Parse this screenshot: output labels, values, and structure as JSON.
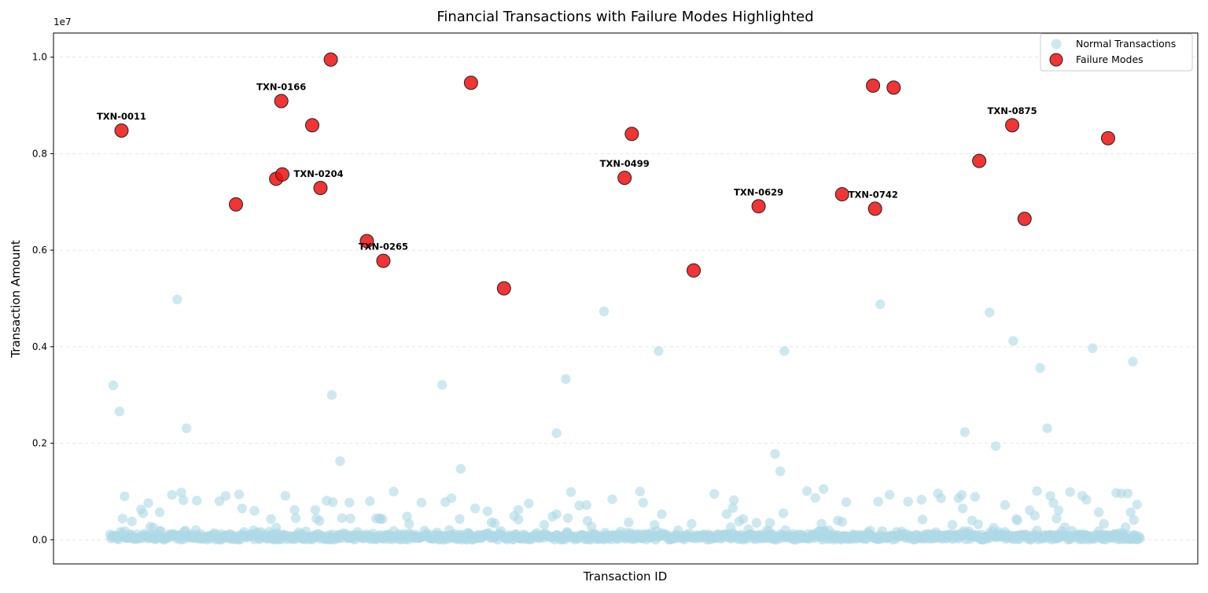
{
  "chart_data": {
    "type": "scatter",
    "title": "Financial Transactions with Failure Modes Highlighted",
    "xlabel": "Transaction ID",
    "ylabel": "Transaction Amount",
    "y_scale_label": "1e7",
    "ylim": [
      -0.05,
      1.05
    ],
    "xlim": [
      -55,
      1055
    ],
    "y_ticks": [
      "0.0",
      "0.2",
      "0.4",
      "0.6",
      "0.8",
      "1.0"
    ],
    "grid": "horizontal-dashed",
    "legend_position": "top-right",
    "legend": [
      "Normal Transactions",
      "Failure Modes"
    ],
    "colors": {
      "normal": "#add8e6",
      "failure": "#ee1111",
      "failure_edge": "#222222",
      "grid": "#dddddd"
    },
    "failures": [
      {
        "x": 11,
        "y": 0.848,
        "label": "TXN-0011"
      },
      {
        "x": 122,
        "y": 0.695,
        "label": ""
      },
      {
        "x": 161,
        "y": 0.748,
        "label": ""
      },
      {
        "x": 166,
        "y": 0.909,
        "label": "TXN-0166"
      },
      {
        "x": 167,
        "y": 0.757,
        "label": ""
      },
      {
        "x": 196,
        "y": 0.859,
        "label": ""
      },
      {
        "x": 204,
        "y": 0.729,
        "label": "TXN-0204"
      },
      {
        "x": 214,
        "y": 0.995,
        "label": ""
      },
      {
        "x": 249,
        "y": 0.619,
        "label": ""
      },
      {
        "x": 265,
        "y": 0.578,
        "label": "TXN-0265"
      },
      {
        "x": 350,
        "y": 0.947,
        "label": ""
      },
      {
        "x": 382,
        "y": 0.521,
        "label": ""
      },
      {
        "x": 499,
        "y": 0.75,
        "label": "TXN-0499"
      },
      {
        "x": 506,
        "y": 0.841,
        "label": ""
      },
      {
        "x": 566,
        "y": 0.558,
        "label": ""
      },
      {
        "x": 629,
        "y": 0.691,
        "label": "TXN-0629"
      },
      {
        "x": 710,
        "y": 0.716,
        "label": ""
      },
      {
        "x": 742,
        "y": 0.686,
        "label": "TXN-0742"
      },
      {
        "x": 740,
        "y": 0.941,
        "label": ""
      },
      {
        "x": 760,
        "y": 0.937,
        "label": ""
      },
      {
        "x": 843,
        "y": 0.785,
        "label": ""
      },
      {
        "x": 875,
        "y": 0.859,
        "label": "TXN-0875"
      },
      {
        "x": 887,
        "y": 0.665,
        "label": ""
      },
      {
        "x": 968,
        "y": 0.832,
        "label": ""
      }
    ],
    "normal_outliers": [
      [
        3,
        0.32
      ],
      [
        9,
        0.266
      ],
      [
        65,
        0.498
      ],
      [
        74,
        0.231
      ],
      [
        215,
        0.3
      ],
      [
        223,
        0.163
      ],
      [
        322,
        0.321
      ],
      [
        340,
        0.147
      ],
      [
        433,
        0.221
      ],
      [
        442,
        0.333
      ],
      [
        479,
        0.473
      ],
      [
        532,
        0.391
      ],
      [
        654,
        0.391
      ],
      [
        747,
        0.488
      ],
      [
        829,
        0.223
      ],
      [
        853,
        0.471
      ],
      [
        859,
        0.194
      ],
      [
        876,
        0.412
      ],
      [
        902,
        0.356
      ],
      [
        909,
        0.231
      ],
      [
        953,
        0.397
      ],
      [
        992,
        0.369
      ],
      [
        645,
        0.178
      ],
      [
        650,
        0.142
      ],
      [
        14,
        0.09
      ],
      [
        37,
        0.076
      ],
      [
        48,
        0.057
      ],
      [
        60,
        0.093
      ],
      [
        69,
        0.098
      ],
      [
        71,
        0.082
      ],
      [
        84,
        0.081
      ],
      [
        125,
        0.094
      ],
      [
        140,
        0.06
      ],
      [
        156,
        0.043
      ],
      [
        179,
        0.062
      ],
      [
        199,
        0.062
      ],
      [
        210,
        0.081
      ],
      [
        216,
        0.078
      ],
      [
        232,
        0.077
      ],
      [
        252,
        0.08
      ],
      [
        275,
        0.1
      ],
      [
        302,
        0.077
      ],
      [
        325,
        0.078
      ],
      [
        331,
        0.086
      ],
      [
        354,
        0.065
      ],
      [
        366,
        0.059
      ],
      [
        396,
        0.062
      ],
      [
        406,
        0.075
      ],
      [
        447,
        0.099
      ],
      [
        462,
        0.072
      ],
      [
        487,
        0.084
      ],
      [
        514,
        0.1
      ],
      [
        517,
        0.077
      ],
      [
        586,
        0.095
      ],
      [
        604,
        0.066
      ],
      [
        627,
        0.035
      ],
      [
        653,
        0.055
      ],
      [
        676,
        0.101
      ],
      [
        692,
        0.105
      ],
      [
        714,
        0.078
      ],
      [
        745,
        0.079
      ],
      [
        756,
        0.093
      ],
      [
        774,
        0.079
      ],
      [
        787,
        0.083
      ],
      [
        803,
        0.096
      ],
      [
        806,
        0.086
      ],
      [
        823,
        0.086
      ],
      [
        826,
        0.093
      ],
      [
        839,
        0.089
      ],
      [
        868,
        0.072
      ],
      [
        899,
        0.101
      ],
      [
        912,
        0.091
      ],
      [
        915,
        0.076
      ],
      [
        920,
        0.061
      ],
      [
        931,
        0.099
      ],
      [
        943,
        0.091
      ],
      [
        947,
        0.083
      ],
      [
        976,
        0.097
      ],
      [
        981,
        0.096
      ],
      [
        990,
        0.057
      ],
      [
        996,
        0.073
      ],
      [
        200,
        0.044
      ],
      [
        203,
        0.039
      ],
      [
        180,
        0.045
      ],
      [
        262,
        0.043
      ],
      [
        261,
        0.045
      ],
      [
        288,
        0.048
      ],
      [
        339,
        0.043
      ],
      [
        392,
        0.049
      ],
      [
        433,
        0.053
      ],
      [
        455,
        0.071
      ],
      [
        463,
        0.039
      ],
      [
        503,
        0.036
      ],
      [
        528,
        0.031
      ],
      [
        564,
        0.033
      ],
      [
        598,
        0.053
      ],
      [
        605,
        0.082
      ],
      [
        614,
        0.043
      ],
      [
        610,
        0.038
      ],
      [
        684,
        0.087
      ],
      [
        690,
        0.033
      ],
      [
        706,
        0.04
      ],
      [
        788,
        0.042
      ],
      [
        817,
        0.031
      ],
      [
        827,
        0.065
      ],
      [
        836,
        0.04
      ],
      [
        842,
        0.032
      ],
      [
        857,
        0.025
      ],
      [
        880,
        0.04
      ],
      [
        879,
        0.043
      ],
      [
        892,
        0.061
      ],
      [
        897,
        0.05
      ],
      [
        918,
        0.044
      ],
      [
        959,
        0.057
      ],
      [
        987,
        0.096
      ],
      [
        993,
        0.041
      ],
      [
        39,
        0.027
      ],
      [
        42,
        0.025
      ],
      [
        106,
        0.08
      ],
      [
        161,
        0.025
      ],
      [
        264,
        0.043
      ],
      [
        290,
        0.033
      ],
      [
        370,
        0.036
      ],
      [
        421,
        0.031
      ],
      [
        467,
        0.027
      ],
      [
        535,
        0.053
      ],
      [
        602,
        0.026
      ],
      [
        619,
        0.022
      ],
      [
        640,
        0.035
      ],
      [
        710,
        0.037
      ],
      [
        964,
        0.033
      ],
      [
        985,
        0.026
      ],
      [
        926,
        0.026
      ],
      [
        32,
        0.055
      ],
      [
        30,
        0.063
      ],
      [
        12,
        0.044
      ],
      [
        21,
        0.038
      ],
      [
        112,
        0.091
      ],
      [
        128,
        0.065
      ],
      [
        170,
        0.091
      ],
      [
        225,
        0.045
      ],
      [
        233,
        0.044
      ],
      [
        258,
        0.044
      ],
      [
        373,
        0.034
      ],
      [
        396,
        0.042
      ],
      [
        429,
        0.048
      ],
      [
        444,
        0.045
      ]
    ]
  }
}
